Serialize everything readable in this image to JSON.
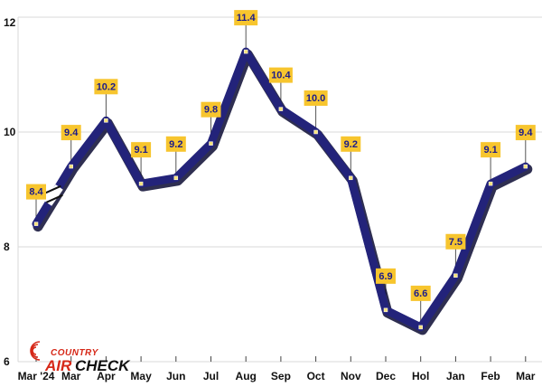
{
  "chart_data": {
    "type": "line",
    "categories": [
      "Mar '24",
      "Mar",
      "Apr",
      "May",
      "Jun",
      "Jul",
      "Aug",
      "Sep",
      "Oct",
      "Nov",
      "Dec",
      "Hol",
      "Jan",
      "Feb",
      "Mar"
    ],
    "values": [
      8.4,
      9.4,
      10.2,
      9.1,
      9.2,
      9.8,
      11.4,
      10.4,
      10.0,
      9.2,
      6.9,
      6.6,
      7.5,
      9.1,
      9.4
    ],
    "data_labels": [
      "8.4",
      "9.4",
      "10.2",
      "9.1",
      "9.2",
      "9.8",
      "11.4",
      "10.4",
      "10.0",
      "9.2",
      "6.9",
      "6.6",
      "7.5",
      "9.1",
      "9.4"
    ],
    "title": "",
    "xlabel": "",
    "ylabel": "",
    "ylim": [
      6,
      12
    ],
    "y_ticks": [
      "6",
      "8",
      "10",
      "12"
    ],
    "grid": "horizontal",
    "axis_break_after_index": 0,
    "colors": {
      "line": "#23237a",
      "line_shadow": "#0b0b33",
      "label_fill": "#f7c52e",
      "label_text": "#1c1c8a",
      "grid": "#d8d8d8",
      "marker": "#f7e27a"
    }
  },
  "logo": {
    "top": "COUNTRY",
    "air": "AIR",
    "check": "CHECK",
    "colors": {
      "red": "#d62818",
      "black": "#111111"
    }
  }
}
